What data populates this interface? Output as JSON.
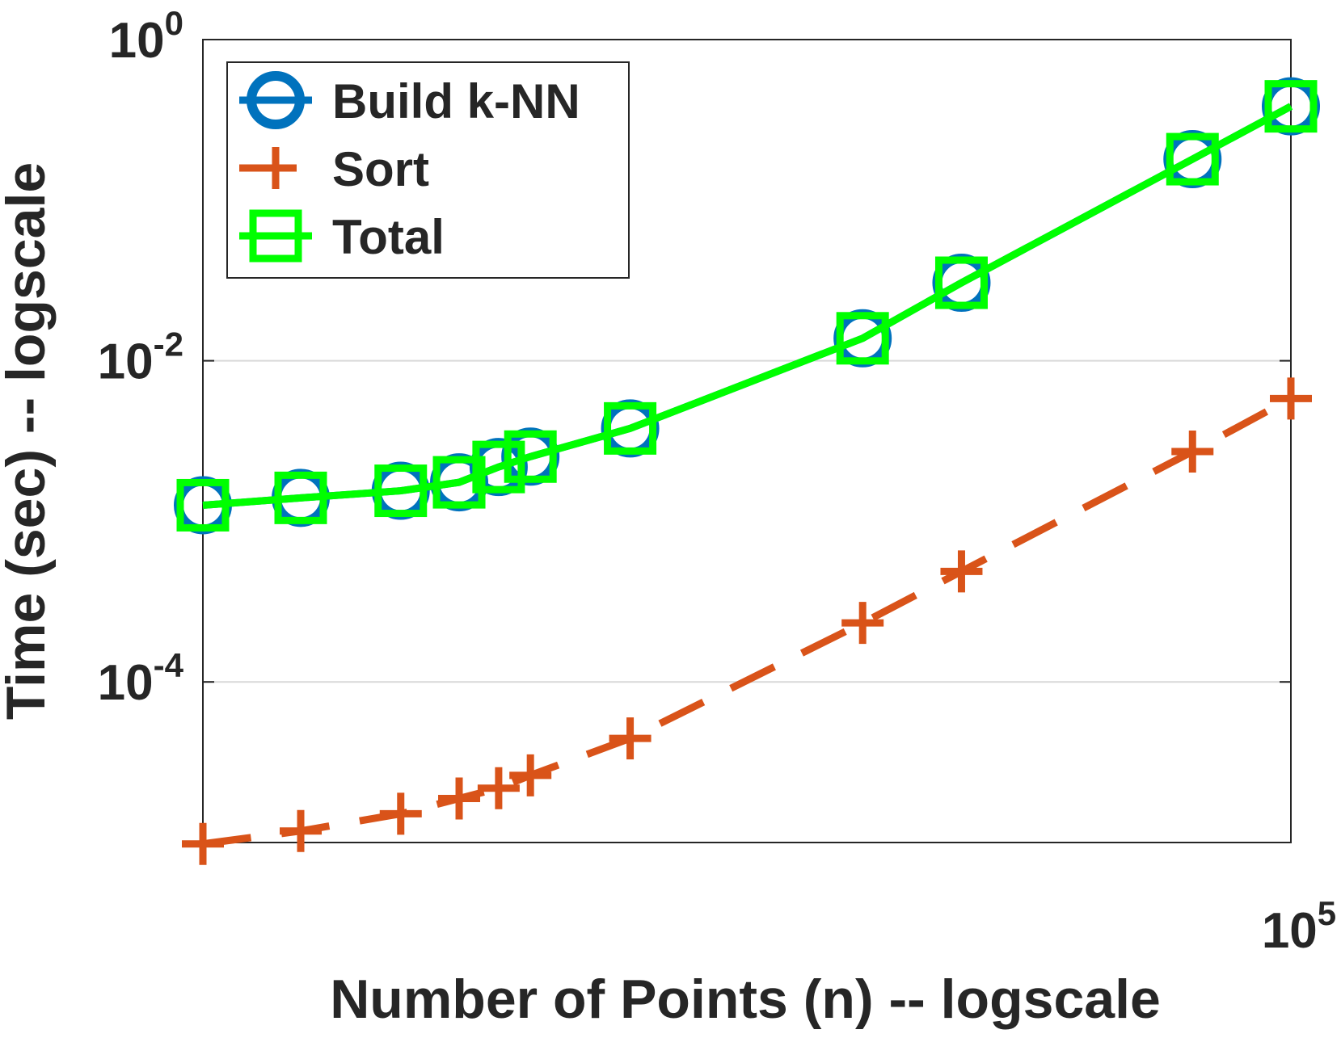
{
  "chart_data": {
    "type": "line",
    "xlabel": "Number of Points (n) -- logscale",
    "ylabel": "Time (sec) -- logscale",
    "x": [
      10000,
      12300,
      15200,
      17200,
      18700,
      20000,
      24700,
      40400,
      49800,
      81200,
      100000
    ],
    "series": [
      {
        "name": "Build k-NN",
        "color": "#0072bd",
        "marker": "circle",
        "linestyle": "solid",
        "values": [
          0.00126,
          0.0014,
          0.00155,
          0.00175,
          0.00218,
          0.00253,
          0.00379,
          0.0138,
          0.0306,
          0.18,
          0.384
        ]
      },
      {
        "name": "Sort",
        "color": "#d95319",
        "marker": "plus",
        "linestyle": "dashed",
        "values": [
          9.8e-06,
          1.18e-05,
          1.51e-05,
          1.88e-05,
          2.18e-05,
          2.62e-05,
          4.45e-05,
          0.000233,
          0.000488,
          0.00272,
          0.00582
        ]
      },
      {
        "name": "Total",
        "color": "#00ff00",
        "marker": "square",
        "linestyle": "solid",
        "values": [
          0.00126,
          0.0014,
          0.00155,
          0.00175,
          0.00218,
          0.00253,
          0.00379,
          0.0138,
          0.0306,
          0.18,
          0.384
        ]
      }
    ],
    "xscale": "log",
    "yscale": "log",
    "xlim": [
      10000,
      100000
    ],
    "ylim": [
      1e-05,
      1
    ],
    "xticks": [
      {
        "value": 100000,
        "label": "10",
        "exponent": "5"
      }
    ],
    "yticks": [
      {
        "value": 0.0001,
        "label": "10",
        "exponent": "-4"
      },
      {
        "value": 0.01,
        "label": "10",
        "exponent": "-2"
      },
      {
        "value": 1,
        "label": "10",
        "exponent": "0"
      }
    ],
    "grid": true,
    "legend": "upper left"
  }
}
